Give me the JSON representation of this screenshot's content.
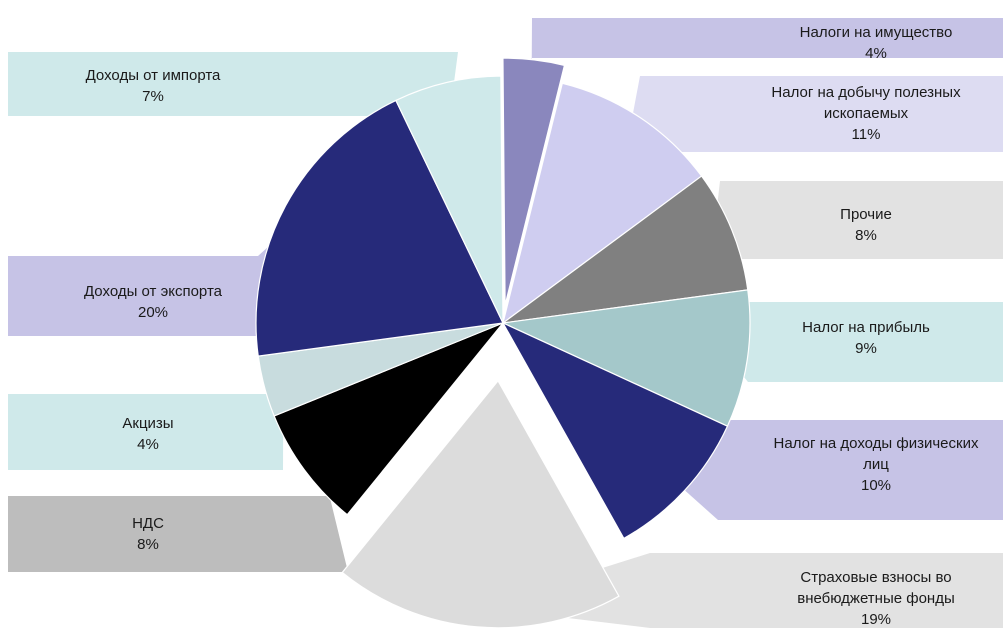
{
  "chart_data": {
    "type": "pie",
    "slices": [
      {
        "name": "Налоги на имущество",
        "lines": [
          "Налоги на имущество"
        ],
        "value": 4,
        "label": "4%",
        "color": "#8a87bd",
        "label_fill": "#c6c3e6",
        "exploded": true
      },
      {
        "name": "Налог на добычу полезных ископаемых",
        "lines": [
          "Налог на добычу полезных",
          "ископаемых"
        ],
        "value": 11,
        "label": "11%",
        "color": "#cfcdf0",
        "label_fill": "#dddcf2",
        "exploded": false
      },
      {
        "name": "Прочие",
        "lines": [
          "Прочие"
        ],
        "value": 8,
        "label": "8%",
        "color": "#808080",
        "label_fill": "#e2e2e2",
        "exploded": false
      },
      {
        "name": "Налог на прибыль",
        "lines": [
          "Налог на прибыль"
        ],
        "value": 9,
        "label": "9%",
        "color": "#a4c8ca",
        "label_fill": "#cfe9ea",
        "exploded": false
      },
      {
        "name": "Налог на доходы физических лиц",
        "lines": [
          "Налог на доходы физических",
          "лиц"
        ],
        "value": 10,
        "label": "10%",
        "color": "#262a7a",
        "label_fill": "#c6c3e6",
        "exploded": false
      },
      {
        "name": "Страховые взносы во внебюджетные фонды",
        "lines": [
          "Страховые взносы во",
          "внебюджетные фонды"
        ],
        "value": 19,
        "label": "19%",
        "color": "#dcdcdc",
        "label_fill": "#e2e2e2",
        "exploded": true
      },
      {
        "name": "НДС",
        "lines": [
          "НДС"
        ],
        "value": 8,
        "label": "8%",
        "color": "#000000",
        "label_fill": "#bdbdbd",
        "exploded": false
      },
      {
        "name": "Акцизы",
        "lines": [
          "Акцизы"
        ],
        "value": 4,
        "label": "4%",
        "color": "#c8dcde",
        "label_fill": "#cfe9ea",
        "exploded": false
      },
      {
        "name": "Доходы от экспорта",
        "lines": [
          "Доходы от экспорта"
        ],
        "value": 20,
        "label": "20%",
        "color": "#262a7a",
        "label_fill": "#c6c3e6",
        "exploded": false
      },
      {
        "name": "Доходы от импорта",
        "lines": [
          "Доходы от импорта"
        ],
        "value": 7,
        "label": "7%",
        "color": "#cfe9ea",
        "label_fill": "#cfe9ea",
        "exploded": false
      }
    ]
  }
}
